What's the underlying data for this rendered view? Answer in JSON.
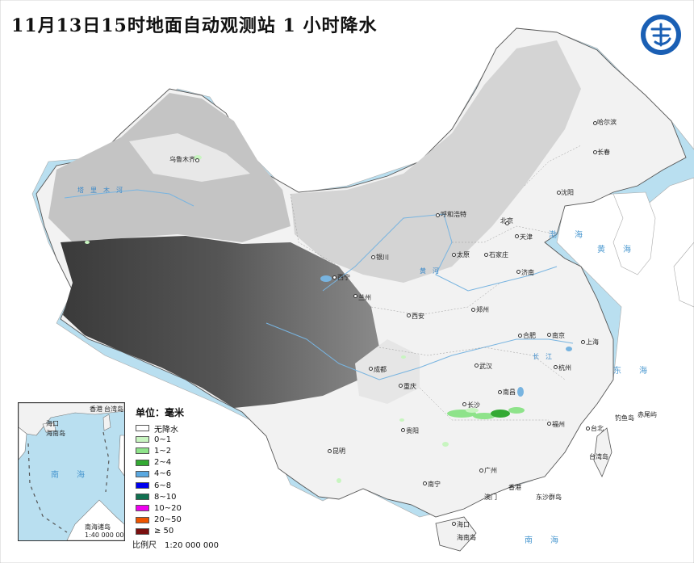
{
  "title": "11月13日15时地面自动观测站 1 小时降水",
  "logo_label": "",
  "legend": {
    "title": "单位：毫米",
    "items": [
      {
        "label": "无降水",
        "color": "#ffffff"
      },
      {
        "label": "0~1",
        "color": "#c8f5c0"
      },
      {
        "label": "1~2",
        "color": "#8ee38a"
      },
      {
        "label": "2~4",
        "color": "#33aa33"
      },
      {
        "label": "4~6",
        "color": "#5aa8e0"
      },
      {
        "label": "6~8",
        "color": "#0000ee"
      },
      {
        "label": "8~10",
        "color": "#107050"
      },
      {
        "label": "10~20",
        "color": "#ee00ee"
      },
      {
        "label": "20~50",
        "color": "#ee5500"
      },
      {
        "label": "≥ 50",
        "color": "#7a1010"
      }
    ]
  },
  "scale": "比例尺　1:20 000 000",
  "inset": {
    "scale": "1:40 000 000",
    "labels": {
      "hk": "香港",
      "tw": "台湾岛",
      "hk2": "海口",
      "hn": "海南岛",
      "sea": "南　海",
      "islands": "南海诸岛"
    }
  },
  "cities": {
    "wlmq": "乌鲁木齐",
    "hrb": "哈尔滨",
    "cc": "长春",
    "sy": "沈阳",
    "hhht": "呼和浩特",
    "bj": "北京",
    "tj": "天津",
    "yc": "银川",
    "ty": "太原",
    "sjz": "石家庄",
    "jn": "济南",
    "xn": "西宁",
    "lz": "兰州",
    "zz": "郑州",
    "xa": "西安",
    "hf": "合肥",
    "nj": "南京",
    "sh": "上海",
    "hz": "杭州",
    "wh": "武汉",
    "cd": "成都",
    "cq": "重庆",
    "cs": "长沙",
    "nc": "南昌",
    "fz": "福州",
    "tb": "台北",
    "gy": "贵阳",
    "km": "昆明",
    "nn": "南宁",
    "gz": "广州",
    "am": "澳门",
    "xg": "香港",
    "hk": "海口",
    "hnd": "海南岛",
    "twd": "台湾岛",
    "dsqd": "东沙群岛",
    "dyd": "钓鱼岛",
    "cwd": "赤尾屿"
  },
  "water": {
    "hh": "黄　海",
    "bh": "渤　海",
    "dh": "东　海",
    "nh": "南　海",
    "hhe": "黄　河",
    "cj": "长　江",
    "tlmh": "塔　里　木　河"
  },
  "rain_colors": {
    "light": "#c8f5c0",
    "mid": "#8ee38a",
    "heavy": "#33aa33"
  }
}
